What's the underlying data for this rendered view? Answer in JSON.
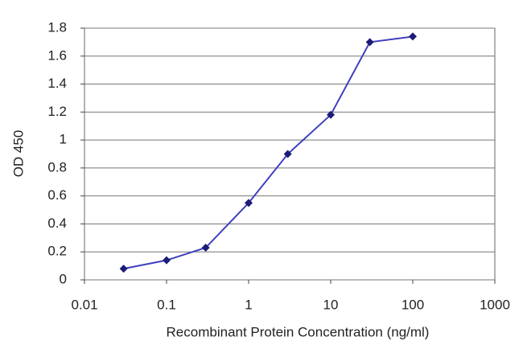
{
  "chart_data": {
    "type": "line",
    "x_label": "Recombinant Protein Concentration (ng/ml)",
    "y_label": "OD 450",
    "x": [
      0.03,
      0.1,
      0.3,
      1,
      3,
      10,
      30,
      100
    ],
    "series": [
      {
        "color": "#3f3fbf",
        "marker_color": "#1c1c78",
        "values": [
          0.08,
          0.14,
          0.23,
          0.55,
          0.9,
          1.18,
          1.7,
          1.74
        ]
      }
    ],
    "x_log": true,
    "xlim": [
      0.01,
      1000
    ],
    "xticks": [
      0.01,
      0.1,
      1,
      10,
      100,
      1000
    ],
    "ylim": [
      0,
      1.8
    ],
    "yticks": [
      0,
      0.2,
      0.4,
      0.6,
      0.8,
      1,
      1.2,
      1.4,
      1.6,
      1.8
    ],
    "grid": true
  }
}
